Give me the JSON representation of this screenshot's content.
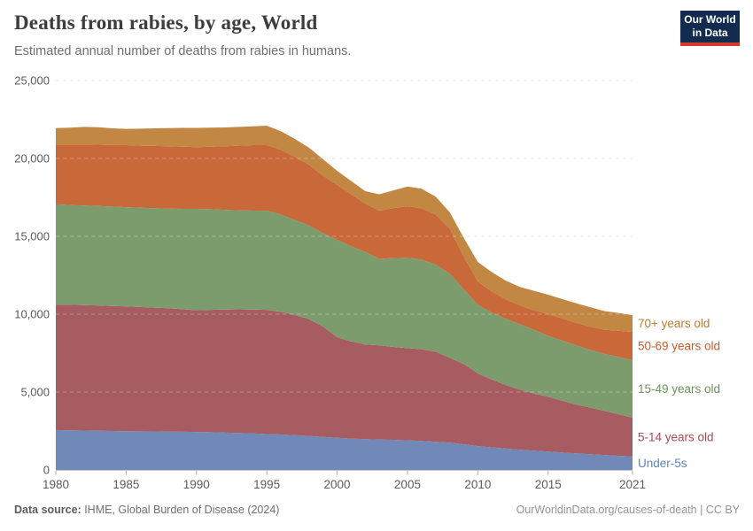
{
  "header": {
    "title": "Deaths from rabies, by age, World",
    "subtitle": "Estimated annual number of deaths from rabies in humans."
  },
  "logo": {
    "line1": "Our World",
    "line2": "in Data",
    "bg_color": "#122b4f",
    "accent_color": "#d6392e"
  },
  "footer": {
    "source_label": "Data source:",
    "source_text": " IHME, Global Burden of Disease (2024)",
    "right_text": "OurWorldinData.org/causes-of-death | CC BY"
  },
  "chart_data": {
    "type": "area",
    "stacked": true,
    "title": "Deaths from rabies, by age, World",
    "subtitle": "Estimated annual number of deaths from rabies in humans.",
    "xlabel": "",
    "ylabel": "",
    "ylim": [
      0,
      25000
    ],
    "grid": "horizontal-dashed",
    "legend_position": "right-of-plot",
    "xticks": [
      1980,
      1985,
      1990,
      1995,
      2000,
      2005,
      2010,
      2015,
      2021
    ],
    "yticks": [
      0,
      5000,
      10000,
      15000,
      20000,
      25000
    ],
    "ytick_labels": [
      "0",
      "5,000",
      "10,000",
      "15,000",
      "20,000",
      "25,000"
    ],
    "x": [
      1980,
      1981,
      1982,
      1983,
      1984,
      1985,
      1986,
      1987,
      1988,
      1989,
      1990,
      1991,
      1992,
      1993,
      1994,
      1995,
      1996,
      1997,
      1998,
      1999,
      2000,
      2001,
      2002,
      2003,
      2004,
      2005,
      2006,
      2007,
      2008,
      2009,
      2010,
      2011,
      2012,
      2013,
      2014,
      2015,
      2016,
      2017,
      2018,
      2019,
      2020,
      2021
    ],
    "series": [
      {
        "name": "Under-5s",
        "color": "#7189b8",
        "label_color": "#6083bb",
        "values": [
          2560,
          2545,
          2530,
          2515,
          2500,
          2490,
          2480,
          2470,
          2460,
          2450,
          2440,
          2420,
          2400,
          2370,
          2340,
          2300,
          2270,
          2230,
          2180,
          2120,
          2060,
          2010,
          1980,
          1950,
          1930,
          1900,
          1860,
          1810,
          1750,
          1650,
          1530,
          1450,
          1370,
          1300,
          1240,
          1180,
          1120,
          1060,
          1010,
          960,
          910,
          870
        ]
      },
      {
        "name": "5-14 years old",
        "color": "#a65c60",
        "label_color": "#a84b53",
        "values": [
          8060,
          8055,
          8050,
          8045,
          8030,
          8010,
          7980,
          7950,
          7920,
          7870,
          7810,
          7860,
          7900,
          7940,
          7960,
          7980,
          7880,
          7720,
          7510,
          7080,
          6460,
          6240,
          6070,
          6050,
          5970,
          5920,
          5890,
          5790,
          5450,
          5150,
          4670,
          4350,
          4080,
          3850,
          3660,
          3520,
          3330,
          3140,
          2990,
          2840,
          2670,
          2480
        ]
      },
      {
        "name": "15-49 years old",
        "color": "#7d9c6e",
        "label_color": "#6b9459",
        "values": [
          6430,
          6410,
          6400,
          6390,
          6380,
          6370,
          6370,
          6380,
          6400,
          6440,
          6510,
          6460,
          6400,
          6360,
          6350,
          6360,
          6250,
          6100,
          6000,
          6000,
          6250,
          6100,
          5950,
          5550,
          5700,
          5810,
          5750,
          5600,
          5400,
          4800,
          4400,
          4300,
          4250,
          4200,
          4100,
          3900,
          3850,
          3800,
          3700,
          3650,
          3670,
          3690
        ]
      },
      {
        "name": "50-69 years old",
        "color": "#c96839",
        "label_color": "#c95b2d",
        "values": [
          3850,
          3880,
          3910,
          3930,
          3950,
          3980,
          3990,
          4000,
          4000,
          3990,
          3970,
          4010,
          4080,
          4150,
          4200,
          4210,
          4150,
          4050,
          3900,
          3700,
          3520,
          3350,
          3100,
          3100,
          3200,
          3300,
          3300,
          3200,
          2900,
          2100,
          1500,
          1350,
          1250,
          1200,
          1250,
          1400,
          1420,
          1450,
          1500,
          1550,
          1680,
          1820
        ]
      },
      {
        "name": "70+ years old",
        "color": "#c28843",
        "label_color": "#bb7d32",
        "values": [
          1050,
          1090,
          1130,
          1120,
          1070,
          1050,
          1090,
          1130,
          1170,
          1210,
          1230,
          1220,
          1210,
          1200,
          1210,
          1250,
          1200,
          1150,
          1100,
          1050,
          910,
          850,
          800,
          1050,
          1150,
          1270,
          1250,
          1150,
          1050,
          1200,
          1250,
          1250,
          1200,
          1200,
          1250,
          1250,
          1250,
          1250,
          1250,
          1200,
          1150,
          1080
        ]
      }
    ]
  }
}
